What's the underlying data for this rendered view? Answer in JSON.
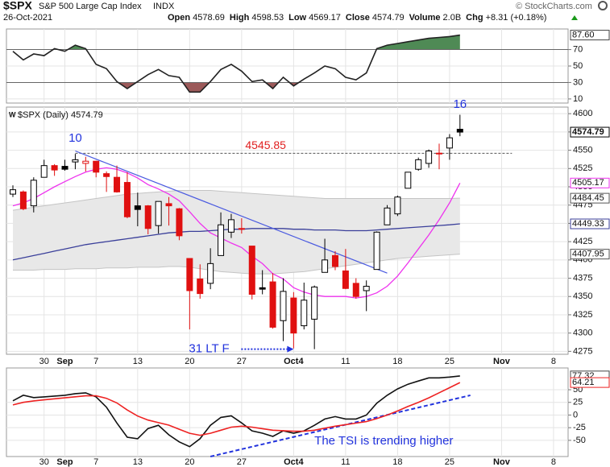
{
  "header": {
    "symbol": "$SPX",
    "name": "S&P 500 Large Cap Index",
    "exchange": "INDX",
    "date": "26-Oct-2021",
    "fields": [
      [
        "Open",
        "4578.69"
      ],
      [
        "High",
        "4598.53"
      ],
      [
        "Low",
        "4569.17"
      ],
      [
        "Close",
        "4574.79"
      ],
      [
        "Volume",
        "2.0B"
      ],
      [
        "Chg",
        "+8.31 (+0.18%)"
      ]
    ],
    "credit": "© StockCharts.com"
  },
  "chart_data": [
    {
      "type": "line",
      "xlim": [
        -0.62,
        53.4
      ],
      "ylim": [
        5,
        95
      ],
      "yticks": [
        10,
        30,
        50,
        70
      ],
      "overbought": 70,
      "oversold": 30,
      "up_color": "#4f8a55",
      "down_color": "#9c5a5a",
      "series": [
        {
          "color": "#222222",
          "last_label": "87.60",
          "values": [
            67.9,
            57.4,
            64.7,
            62.6,
            71.1,
            67.9,
            75.3,
            71.1,
            52.1,
            46.8,
            31.1,
            22.6,
            31.1,
            39.5,
            45.8,
            38.4,
            36.3,
            18.4,
            18.4,
            31.1,
            45.8,
            52.1,
            43.7,
            31.1,
            33.2,
            22.6,
            36.3,
            25.8,
            34.2,
            41.6,
            50,
            46.8,
            36.3,
            33.2,
            41.6,
            71.1,
            75.3,
            77.4,
            79.5,
            81.6,
            83.7,
            84.7,
            85.8,
            87.6
          ]
        }
      ]
    },
    {
      "type": "candlestick",
      "legend": "$SPX (Daily) 4574.79",
      "last_label": "4574.79",
      "xlim": [
        -0.62,
        53.4
      ],
      "ylim": [
        4271,
        4609
      ],
      "yticks": [
        4275,
        4300,
        4325,
        4350,
        4375,
        4400,
        4425,
        4450,
        4475,
        4500,
        4525,
        4550,
        4575,
        4600
      ],
      "xticks": [
        {
          "value": 3,
          "label": "30"
        },
        {
          "value": 5,
          "label": "Sep"
        },
        {
          "value": 8,
          "label": "7"
        },
        {
          "value": 12,
          "label": "13"
        },
        {
          "value": 17,
          "label": "20"
        },
        {
          "value": 22,
          "label": "27"
        },
        {
          "value": 27,
          "label": "Oct4"
        },
        {
          "value": 32,
          "label": "11"
        },
        {
          "value": 37,
          "label": "18"
        },
        {
          "value": 42,
          "label": "25"
        },
        {
          "value": 47,
          "label": "Nov"
        },
        {
          "value": 52,
          "label": "8"
        }
      ],
      "open": [
        4490,
        4493,
        4474,
        4513,
        4529,
        4528,
        4534,
        4532,
        4535,
        4518,
        4513,
        4506,
        4474,
        4474,
        4447,
        4477,
        4470,
        4402,
        4374,
        4368,
        4406,
        4438,
        4442,
        4419,
        4362,
        4370,
        4317,
        4348,
        4310,
        4319,
        4383,
        4406,
        4385,
        4368,
        4358,
        4387,
        4448,
        4463,
        4498,
        4524,
        4532,
        4546,
        4553,
        4578.69
      ],
      "high": [
        4502,
        4495,
        4513,
        4537,
        4531,
        4537,
        4545,
        4541,
        4535,
        4521,
        4529,
        4520,
        4492,
        4475,
        4480,
        4486,
        4471,
        4402,
        4394,
        4416,
        4465,
        4463,
        4457,
        4419,
        4386,
        4382,
        4375,
        4356,
        4369,
        4365,
        4429,
        4412,
        4415,
        4375,
        4372,
        4439,
        4475,
        4488,
        4520,
        4540,
        4551,
        4559,
        4572,
        4598.53
      ],
      "low": [
        4486,
        4468,
        4465,
        4513,
        4515,
        4522,
        4524,
        4521,
        4513,
        4493,
        4492,
        4457,
        4446,
        4435,
        4436,
        4447,
        4427,
        4305,
        4347,
        4360,
        4406,
        4430,
        4436,
        4346,
        4353,
        4306,
        4289,
        4279,
        4305,
        4278,
        4383,
        4386,
        4360,
        4347,
        4330,
        4387,
        4448,
        4460,
        4498,
        4522,
        4526,
        4524,
        4537,
        4569.17
      ],
      "close": [
        4496,
        4470,
        4509,
        4529,
        4523,
        4524,
        4537,
        4535,
        4520,
        4514,
        4493,
        4459,
        4469,
        4443,
        4480,
        4474,
        4433,
        4358,
        4354,
        4395,
        4448,
        4455,
        4443,
        4353,
        4360,
        4308,
        4357,
        4300,
        4345,
        4363,
        4400,
        4391,
        4361,
        4350,
        4364,
        4438,
        4471,
        4486,
        4520,
        4537,
        4549,
        4545,
        4567,
        4574.79
      ],
      "up_color": "#000000",
      "down_color": "#e01010",
      "band": {
        "color": "#e8e8e8",
        "edge": "#c4c4c4",
        "upper_label": "4484.45",
        "lower_label": "4407.95",
        "upper": [
          4468,
          4470,
          4472,
          4474,
          4476,
          4478,
          4480,
          4482,
          4484,
          4486,
          4488,
          4490,
          4491,
          4492,
          4493,
          4494,
          4495,
          4495,
          4495,
          4495,
          4494,
          4493,
          4492,
          4491,
          4490,
          4489,
          4488,
          4487,
          4486,
          4485,
          4484,
          4484,
          4484,
          4484,
          4484,
          4484,
          4484,
          4484,
          4484,
          4484,
          4484,
          4484,
          4484,
          4484.45
        ],
        "lower": [
          4386,
          4386,
          4386,
          4387,
          4387,
          4387,
          4388,
          4388,
          4388,
          4389,
          4389,
          4389,
          4390,
          4390,
          4390,
          4391,
          4391,
          4390,
          4388,
          4386,
          4384,
          4383,
          4382,
          4381,
          4381,
          4381,
          4382,
          4383,
          4384,
          4386,
          4388,
          4390,
          4392,
          4394,
          4396,
          4398,
          4400,
          4402,
          4403,
          4404,
          4405,
          4406,
          4407,
          4407.95
        ]
      },
      "series": [
        {
          "color": "#ee33ee",
          "last_label": "4505.17",
          "values": [
            4474,
            4478,
            4484,
            4492,
            4500,
            4507,
            4514,
            4520,
            4524,
            4526,
            4524,
            4519,
            4512,
            4503,
            4497,
            4490,
            4481,
            4466,
            4450,
            4437,
            4430,
            4423,
            4417,
            4405,
            4395,
            4381,
            4374,
            4362,
            4356,
            4352,
            4350,
            4350,
            4350,
            4348,
            4350,
            4355,
            4364,
            4378,
            4396,
            4415,
            4434,
            4455,
            4478,
            4505.17
          ]
        },
        {
          "color": "#3a3f9a",
          "last_label": "4449.33",
          "values": [
            4400,
            4403,
            4406,
            4409,
            4412,
            4415,
            4418,
            4421,
            4423,
            4425,
            4427,
            4429,
            4431,
            4433,
            4435,
            4437,
            4438,
            4439,
            4439,
            4440,
            4441,
            4442,
            4442,
            4443,
            4443,
            4443,
            4443,
            4442,
            4442,
            4441,
            4441,
            4441,
            4440,
            4440,
            4440,
            4441,
            4442,
            4443,
            4444,
            4445,
            4446,
            4447,
            4448,
            4449.33
          ]
        }
      ],
      "level": {
        "value": 4545.85,
        "from": 6,
        "to": 48,
        "color": "#e02020"
      },
      "trendline": {
        "x": [
          6,
          36
        ],
        "y": [
          4549,
          4382
        ],
        "color": "#4a5ae0"
      },
      "annotations": [
        {
          "text": "10",
          "x": 6,
          "y": 4566
        },
        {
          "text": "16",
          "x": 43,
          "y": 4612
        }
      ],
      "arrow": {
        "text": "31 LT F",
        "x": 27,
        "y": 4278
      }
    },
    {
      "type": "line",
      "xlim": [
        -0.62,
        53.4
      ],
      "ylim": [
        -82,
        93
      ],
      "yticks": [
        -50,
        -25,
        0,
        25,
        50
      ],
      "xticks": [
        {
          "value": 3,
          "label": "30"
        },
        {
          "value": 5,
          "label": "Sep"
        },
        {
          "value": 8,
          "label": "7"
        },
        {
          "value": 12,
          "label": "13"
        },
        {
          "value": 17,
          "label": "20"
        },
        {
          "value": 22,
          "label": "27"
        },
        {
          "value": 27,
          "label": "Oct4"
        },
        {
          "value": 32,
          "label": "11"
        },
        {
          "value": 37,
          "label": "18"
        },
        {
          "value": 42,
          "label": "25"
        },
        {
          "value": 47,
          "label": "Nov"
        },
        {
          "value": 52,
          "label": "8"
        }
      ],
      "series": [
        {
          "color": "#111111",
          "last_label": "77.32",
          "values": [
            28.1,
            39.1,
            34.4,
            35.9,
            37.5,
            39.1,
            42.2,
            43.8,
            35.9,
            15.6,
            -15.6,
            -43.8,
            -46.9,
            -26.6,
            -20.3,
            -39.1,
            -53.1,
            -62.5,
            -46.9,
            -20.3,
            -4.7,
            -1.6,
            -15.6,
            -31.3,
            -35.9,
            -42.2,
            -31.3,
            -35.9,
            -31.3,
            -20.3,
            -7.8,
            -3.1,
            -7.8,
            -7.8,
            0,
            23.4,
            39.1,
            51.6,
            60.9,
            67.2,
            73.4,
            73.4,
            75,
            77.32
          ]
        },
        {
          "color": "#ee2222",
          "last_label": "64.21",
          "values": [
            20,
            25,
            28,
            30,
            32,
            34,
            36,
            38,
            38,
            33,
            24,
            10,
            -2,
            -10,
            -15,
            -20,
            -28,
            -36,
            -40,
            -36,
            -30,
            -24,
            -22,
            -24,
            -27,
            -30,
            -31,
            -32,
            -32,
            -30,
            -26,
            -22,
            -19,
            -16,
            -13,
            -7,
            0,
            8,
            17,
            25,
            34,
            44,
            54,
            64.21
          ]
        }
      ],
      "trendline": {
        "x": [
          19,
          44
        ],
        "y": [
          -82,
          39
        ],
        "color": "#2233dd"
      },
      "note": {
        "text": "The TSI is trending higher",
        "x": 29,
        "y": -52
      }
    }
  ]
}
